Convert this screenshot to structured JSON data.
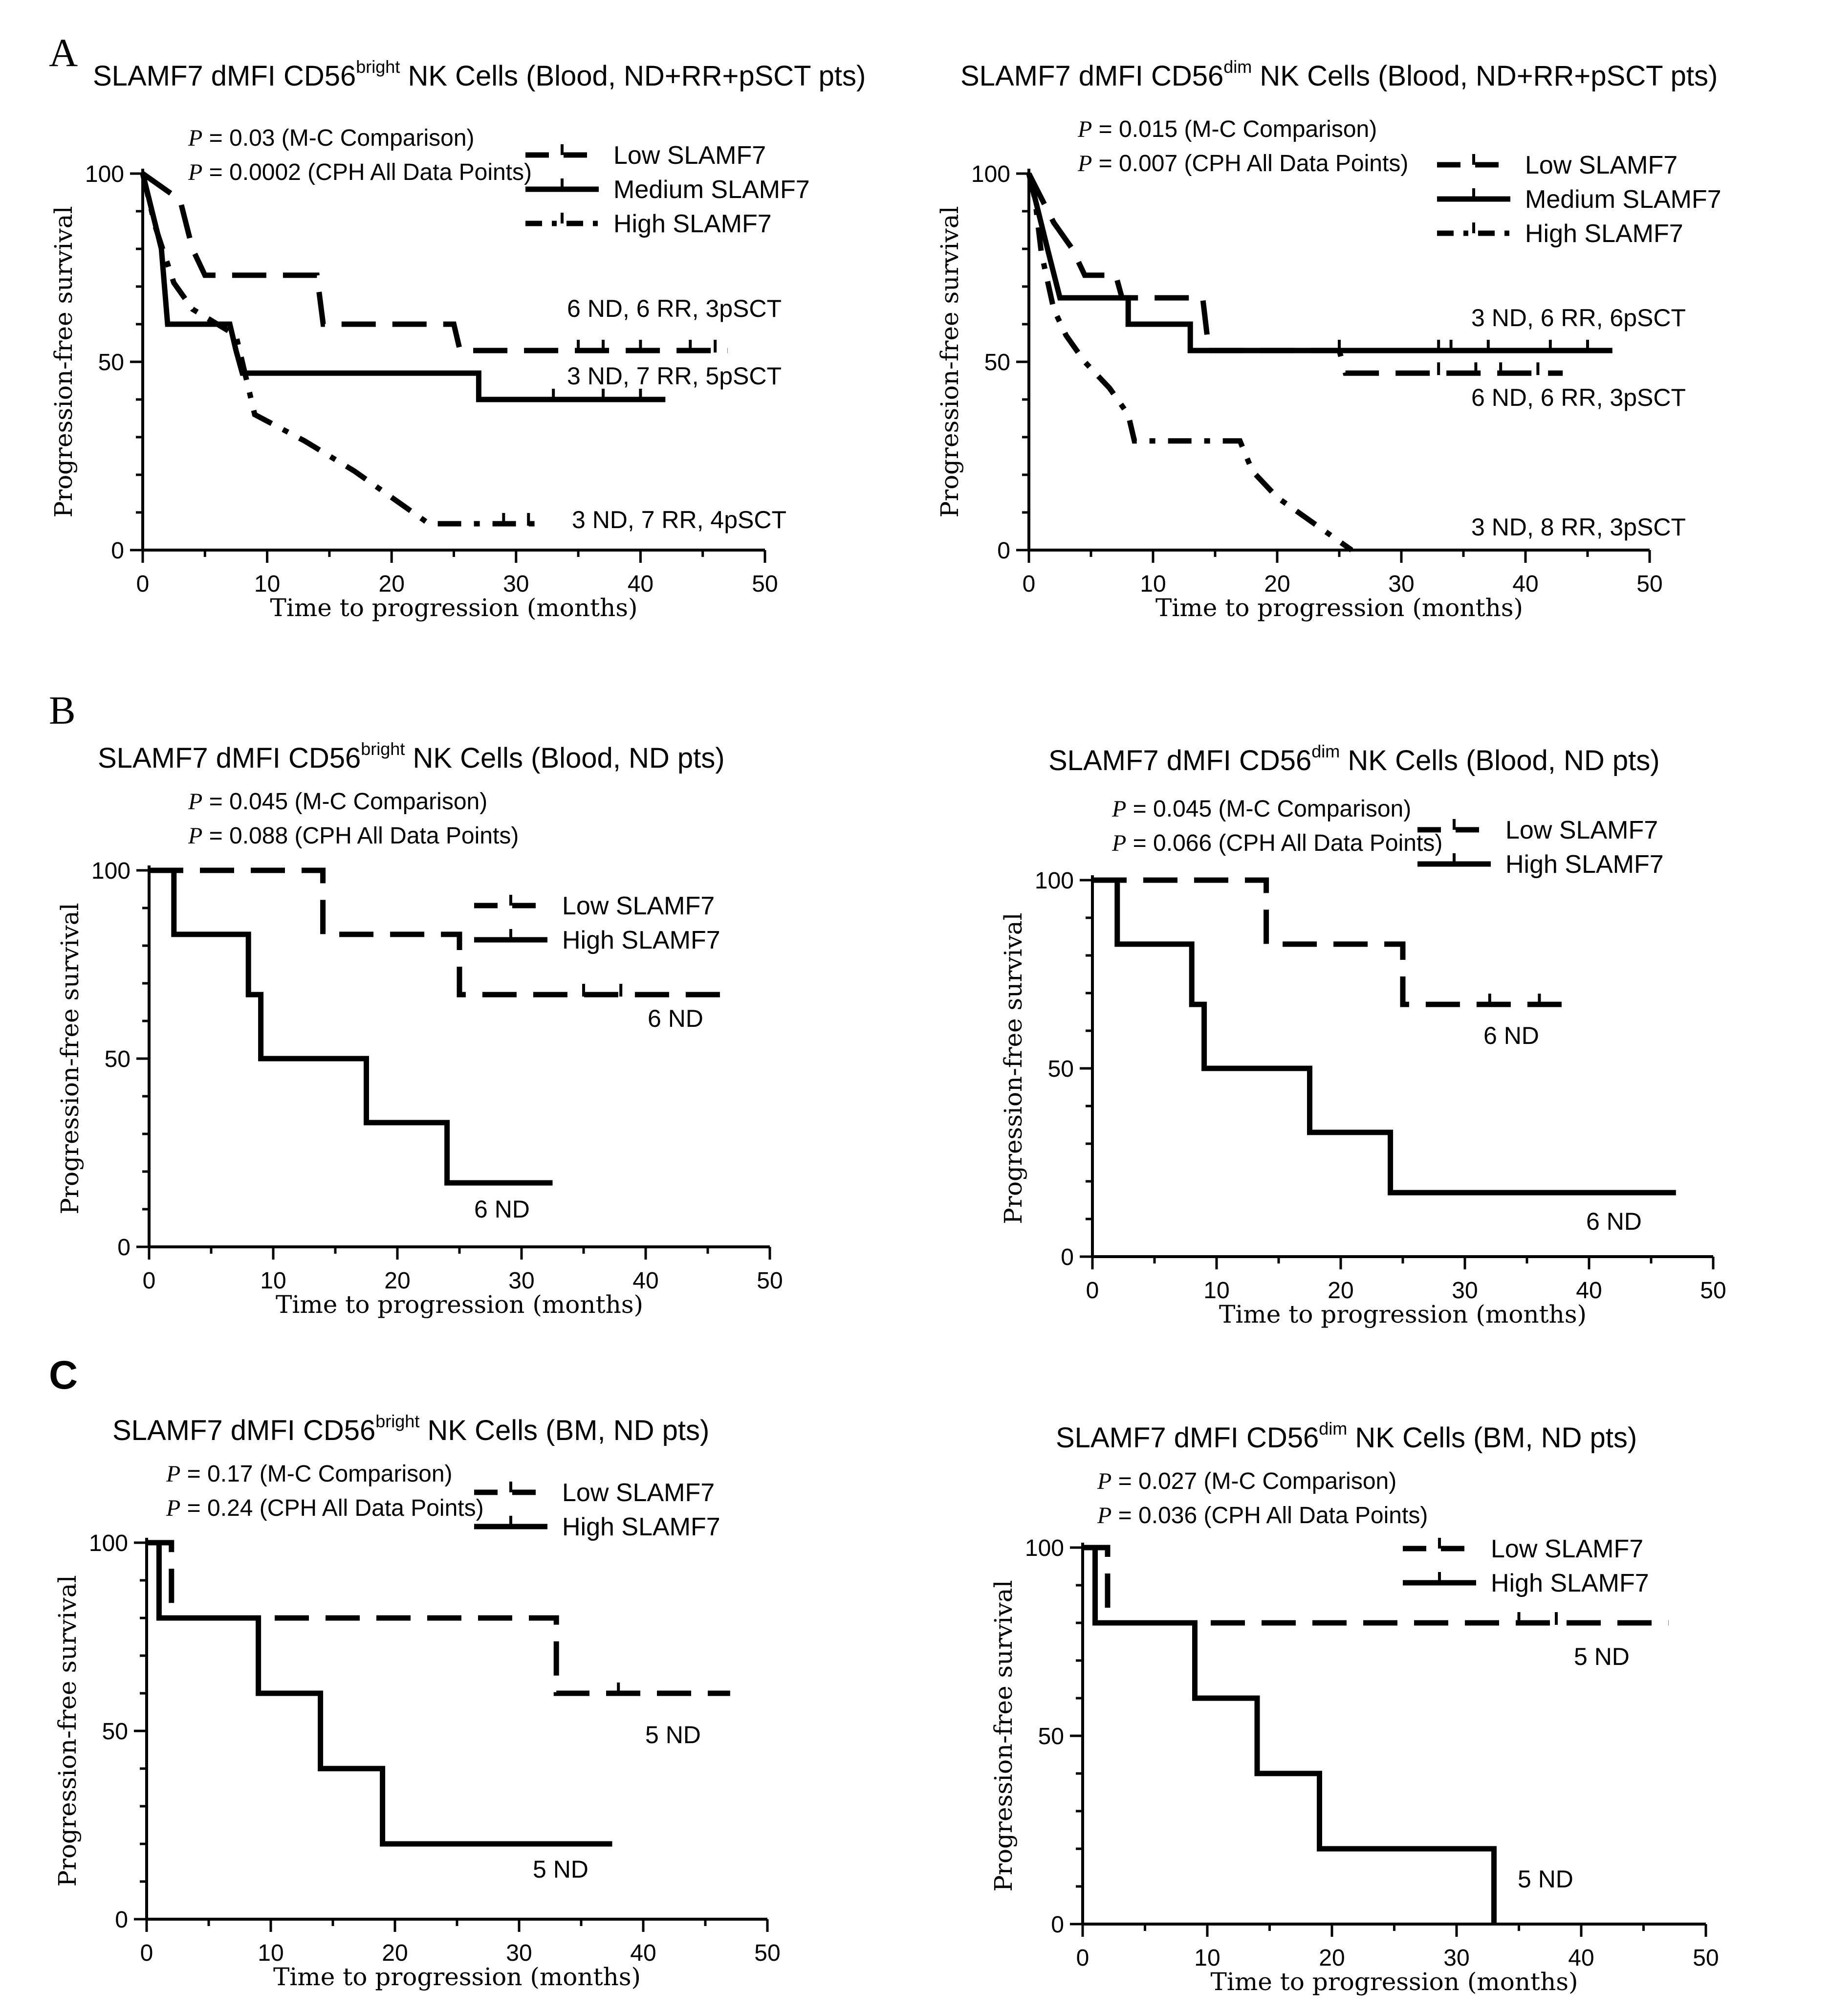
{
  "panel_letters": [
    "A",
    "B",
    "C"
  ],
  "chart_data": [
    {
      "type": "line",
      "panel": "A",
      "title_main": "SLAMF7 dMFI CD56",
      "title_sup": "bright",
      "title_rest": " NK Cells (Blood, ND+RR+pSCT pts)",
      "stats": [
        {
          "p": "P",
          "text": " = 0.03 (M-C Comparison)"
        },
        {
          "p": "P",
          "text": " = 0.0002 (CPH All Data Points)"
        }
      ],
      "xlabel": "Time to progression (months)",
      "ylabel": "Progression-free survival",
      "xlim": [
        0,
        50
      ],
      "ylim": [
        0,
        100
      ],
      "xticks": [
        0,
        10,
        20,
        30,
        40,
        50
      ],
      "yticks": [
        0,
        50,
        100
      ],
      "series": [
        {
          "name": "Low SLAMF7",
          "style": "dashed",
          "points": [
            [
              0,
              100
            ],
            [
              3,
              93
            ],
            [
              4,
              80
            ],
            [
              5,
              73
            ],
            [
              14,
              73
            ],
            [
              14.5,
              60
            ],
            [
              25,
              60
            ],
            [
              25.5,
              53
            ],
            [
              47,
              53
            ]
          ],
          "censors": [
            [
              35,
              53
            ],
            [
              37,
              53
            ],
            [
              40,
              53
            ],
            [
              44,
              53
            ],
            [
              46,
              53
            ]
          ]
        },
        {
          "name": "Medium SLAMF7",
          "style": "solid",
          "points": [
            [
              0,
              100
            ],
            [
              1.5,
              80
            ],
            [
              2,
              60
            ],
            [
              7,
              60
            ],
            [
              7.5,
              53
            ],
            [
              8,
              47
            ],
            [
              27,
              47
            ],
            [
              27,
              40
            ],
            [
              42,
              40
            ]
          ],
          "censors": [
            [
              33,
              40
            ],
            [
              37,
              40
            ],
            [
              40,
              40
            ]
          ]
        },
        {
          "name": "High SLAMF7",
          "style": "dashdot",
          "points": [
            [
              0,
              100
            ],
            [
              1,
              86
            ],
            [
              2.5,
              71
            ],
            [
              4,
              64
            ],
            [
              7.5,
              57
            ],
            [
              8.5,
              43
            ],
            [
              9,
              36
            ],
            [
              13,
              29
            ],
            [
              17,
              21
            ],
            [
              20,
              14
            ],
            [
              23,
              7
            ],
            [
              32,
              7
            ]
          ],
          "censors": [
            [
              29,
              7
            ],
            [
              31,
              7
            ]
          ]
        }
      ],
      "annotations": [
        "6 ND, 6 RR, 3pSCT",
        "3 ND, 7 RR, 5pSCT",
        "3 ND, 7 RR, 4pSCT"
      ]
    },
    {
      "type": "line",
      "panel": "A",
      "title_main": "SLAMF7 dMFI CD56",
      "title_sup": "dim",
      "title_rest": " NK Cells (Blood, ND+RR+pSCT pts)",
      "stats": [
        {
          "p": "P",
          "text": " = 0.015 (M-C Comparison)"
        },
        {
          "p": "P",
          "text": " = 0.007 (CPH All Data Points)"
        }
      ],
      "xlabel": "Time to progression (months)",
      "ylabel": "Progression-free survival",
      "xlim": [
        0,
        50
      ],
      "ylim": [
        0,
        100
      ],
      "xticks": [
        0,
        10,
        20,
        30,
        40,
        50
      ],
      "yticks": [
        0,
        50,
        100
      ],
      "series": [
        {
          "name": "Low SLAMF7",
          "style": "dashed",
          "points": [
            [
              0,
              100
            ],
            [
              2,
              87
            ],
            [
              3.5,
              80
            ],
            [
              4.5,
              73
            ],
            [
              7,
              73
            ],
            [
              7.5,
              67
            ],
            [
              14,
              67
            ],
            [
              14.5,
              53
            ],
            [
              25,
              53
            ],
            [
              25.5,
              47
            ],
            [
              43,
              47
            ]
          ],
          "censors": [
            [
              33,
              47
            ],
            [
              36,
              47
            ],
            [
              38,
              47
            ],
            [
              41,
              47
            ]
          ]
        },
        {
          "name": "Medium SLAMF7",
          "style": "solid",
          "points": [
            [
              0,
              100
            ],
            [
              1.5,
              80
            ],
            [
              2.5,
              67
            ],
            [
              8,
              67
            ],
            [
              8,
              60
            ],
            [
              13,
              60
            ],
            [
              13,
              53
            ],
            [
              47,
              53
            ]
          ],
          "censors": [
            [
              25,
              53
            ],
            [
              33,
              53
            ],
            [
              34,
              53
            ],
            [
              37,
              53
            ],
            [
              42,
              53
            ],
            [
              45,
              53
            ]
          ]
        },
        {
          "name": "High SLAMF7",
          "style": "dashdot",
          "points": [
            [
              0,
              100
            ],
            [
              0.5,
              93
            ],
            [
              1,
              79
            ],
            [
              2,
              64
            ],
            [
              3,
              57
            ],
            [
              4.5,
              50
            ],
            [
              6.5,
              43
            ],
            [
              8,
              36
            ],
            [
              8.5,
              29
            ],
            [
              17,
              29
            ],
            [
              18,
              21
            ],
            [
              20,
              14
            ],
            [
              23,
              7
            ],
            [
              26,
              0
            ]
          ],
          "censors": []
        }
      ],
      "annotations": [
        "3 ND, 6 RR, 6pSCT",
        "6 ND, 6 RR, 3pSCT",
        "3 ND, 8 RR, 3pSCT"
      ]
    },
    {
      "type": "line",
      "panel": "B",
      "title_main": "SLAMF7 dMFI CD56",
      "title_sup": "bright",
      "title_rest": " NK Cells (Blood, ND pts)",
      "stats": [
        {
          "p": "P",
          "text": " = 0.045 (M-C Comparison)"
        },
        {
          "p": "P",
          "text": " = 0.088 (CPH All Data Points)"
        }
      ],
      "xlabel": "Time to progression (months)",
      "ylabel": "Progression-free survival",
      "xlim": [
        0,
        50
      ],
      "ylim": [
        0,
        100
      ],
      "xticks": [
        0,
        10,
        20,
        30,
        40,
        50
      ],
      "yticks": [
        0,
        50,
        100
      ],
      "series": [
        {
          "name": "Low SLAMF7",
          "style": "dashed",
          "points": [
            [
              0,
              100
            ],
            [
              14,
              100
            ],
            [
              14,
              83
            ],
            [
              25,
              83
            ],
            [
              25,
              67
            ],
            [
              47,
              67
            ]
          ],
          "censors": [
            [
              35,
              67
            ],
            [
              38,
              67
            ]
          ]
        },
        {
          "name": "High SLAMF7",
          "style": "solid",
          "points": [
            [
              0,
              100
            ],
            [
              2,
              100
            ],
            [
              2,
              83
            ],
            [
              8,
              83
            ],
            [
              8,
              67
            ],
            [
              9,
              67
            ],
            [
              9,
              50
            ],
            [
              17.5,
              50
            ],
            [
              17.5,
              33
            ],
            [
              24,
              33
            ],
            [
              24,
              17
            ],
            [
              32.5,
              17
            ]
          ],
          "censors": []
        }
      ],
      "annotations": [
        "6 ND",
        "6 ND"
      ]
    },
    {
      "type": "line",
      "panel": "B",
      "title_main": "SLAMF7 dMFI CD56",
      "title_sup": "dim",
      "title_rest": " NK Cells (Blood, ND pts)",
      "stats": [
        {
          "p": "P",
          "text": " = 0.045 (M-C Comparison)"
        },
        {
          "p": "P",
          "text": " = 0.066 (CPH All Data Points)"
        }
      ],
      "xlabel": "Time to progression (months)",
      "ylabel": "Progression-free survival",
      "xlim": [
        0,
        50
      ],
      "ylim": [
        0,
        100
      ],
      "xticks": [
        0,
        10,
        20,
        30,
        40,
        50
      ],
      "yticks": [
        0,
        50,
        100
      ],
      "series": [
        {
          "name": "Low SLAMF7",
          "style": "dashed",
          "points": [
            [
              0,
              100
            ],
            [
              14,
              100
            ],
            [
              14,
              83
            ],
            [
              25,
              83
            ],
            [
              25,
              67
            ],
            [
              38,
              67
            ]
          ],
          "censors": [
            [
              32,
              67
            ],
            [
              36,
              67
            ]
          ]
        },
        {
          "name": "High SLAMF7",
          "style": "solid",
          "points": [
            [
              0,
              100
            ],
            [
              2,
              100
            ],
            [
              2,
              83
            ],
            [
              8,
              83
            ],
            [
              8,
              67
            ],
            [
              9,
              67
            ],
            [
              9,
              50
            ],
            [
              17.5,
              50
            ],
            [
              17.5,
              33
            ],
            [
              24,
              33
            ],
            [
              24,
              17
            ],
            [
              47,
              17
            ]
          ],
          "censors": []
        }
      ],
      "annotations": [
        "6 ND",
        "6 ND"
      ]
    },
    {
      "type": "line",
      "panel": "C",
      "title_main": "SLAMF7 dMFI CD56",
      "title_sup": "bright",
      "title_rest": " NK Cells (BM, ND pts)",
      "stats": [
        {
          "p": "P",
          "text": " = 0.17 (M-C Comparison)"
        },
        {
          "p": "P",
          "text": " = 0.24 (CPH All Data Points)"
        }
      ],
      "xlabel": "Time to progression (months)",
      "ylabel": "Progression-free survival",
      "xlim": [
        0,
        50
      ],
      "ylim": [
        0,
        100
      ],
      "xticks": [
        0,
        10,
        20,
        30,
        40,
        50
      ],
      "yticks": [
        0,
        50,
        100
      ],
      "series": [
        {
          "name": "Low SLAMF7",
          "style": "dashed",
          "points": [
            [
              0,
              100
            ],
            [
              2,
              100
            ],
            [
              2,
              80
            ],
            [
              33,
              80
            ],
            [
              33,
              60
            ],
            [
              47,
              60
            ]
          ],
          "censors": [
            [
              38,
              60
            ]
          ]
        },
        {
          "name": "High SLAMF7",
          "style": "solid",
          "points": [
            [
              0,
              100
            ],
            [
              1,
              100
            ],
            [
              1,
              80
            ],
            [
              9,
              80
            ],
            [
              9,
              60
            ],
            [
              14,
              60
            ],
            [
              14,
              40
            ],
            [
              19,
              40
            ],
            [
              19,
              20
            ],
            [
              37.5,
              20
            ]
          ],
          "censors": []
        }
      ],
      "annotations": [
        "5 ND",
        "5 ND"
      ]
    },
    {
      "type": "line",
      "panel": "C",
      "title_main": "SLAMF7 dMFI CD56",
      "title_sup": "dim",
      "title_rest": " NK Cells (BM, ND pts)",
      "stats": [
        {
          "p": "P",
          "text": " = 0.027 (M-C Comparison)"
        },
        {
          "p": "P",
          "text": " = 0.036 (CPH All Data Points)"
        }
      ],
      "xlabel": "Time to progression (months)",
      "ylabel": "Progression-free survival",
      "xlim": [
        0,
        50
      ],
      "ylim": [
        0,
        100
      ],
      "xticks": [
        0,
        10,
        20,
        30,
        40,
        50
      ],
      "yticks": [
        0,
        50,
        100
      ],
      "series": [
        {
          "name": "Low SLAMF7",
          "style": "dashed",
          "points": [
            [
              0,
              100
            ],
            [
              2,
              100
            ],
            [
              2,
              80
            ],
            [
              47,
              80
            ]
          ],
          "censors": [
            [
              35,
              80
            ],
            [
              38,
              80
            ]
          ]
        },
        {
          "name": "High SLAMF7",
          "style": "solid",
          "points": [
            [
              0,
              100
            ],
            [
              1,
              100
            ],
            [
              1,
              80
            ],
            [
              9,
              80
            ],
            [
              9,
              60
            ],
            [
              14,
              60
            ],
            [
              14,
              40
            ],
            [
              19,
              40
            ],
            [
              19,
              20
            ],
            [
              33,
              20
            ],
            [
              33,
              0
            ]
          ],
          "censors": []
        }
      ],
      "annotations": [
        "5 ND",
        "5 ND"
      ]
    }
  ]
}
